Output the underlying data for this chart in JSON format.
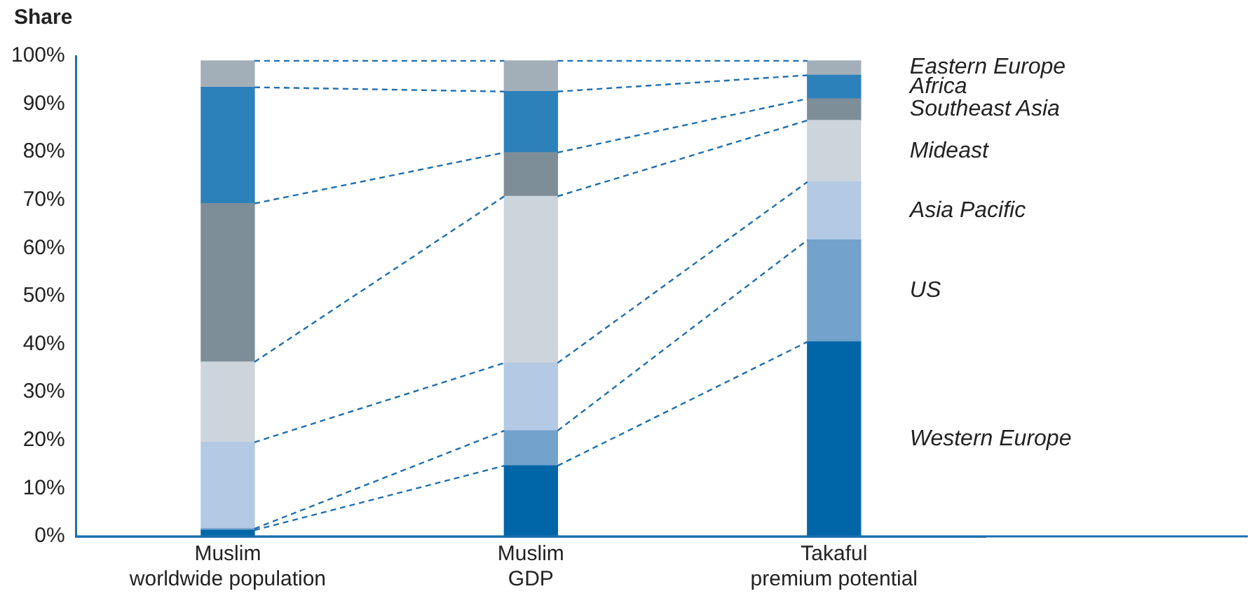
{
  "chart_data": {
    "type": "bar",
    "stacked": true,
    "ylabel": "Share",
    "categories": [
      "Muslim worldwide population",
      "Muslim GDP",
      "Takaful premium potential"
    ],
    "series": [
      {
        "name": "Western Europe",
        "color": "#0066a8",
        "values": [
          1.3,
          14.7,
          40.5
        ]
      },
      {
        "name": "US",
        "color": "#73a2cc",
        "values": [
          0.3,
          7.3,
          21.2
        ]
      },
      {
        "name": "Asia Pacific",
        "color": "#b3c9e4",
        "values": [
          18,
          14.1,
          12.1
        ]
      },
      {
        "name": "Mideast",
        "color": "#cdd5dc",
        "values": [
          16.7,
          34.7,
          12.8
        ]
      },
      {
        "name": "Southeast Asia",
        "color": "#7e8e98",
        "values": [
          33,
          9.1,
          4.5
        ]
      },
      {
        "name": "Africa",
        "color": "#2d81bb",
        "values": [
          24.2,
          12.7,
          4.9
        ]
      },
      {
        "name": "Eastern Europe",
        "color": "#a3afb8",
        "values": [
          5.5,
          6.4,
          3
        ]
      }
    ],
    "ylim": [
      0,
      100
    ],
    "yticks": [
      {
        "value": 0,
        "label": "0%"
      },
      {
        "value": 10,
        "label": "10%"
      },
      {
        "value": 20,
        "label": "20%"
      },
      {
        "value": 30,
        "label": "30%"
      },
      {
        "value": 40,
        "label": "40%"
      },
      {
        "value": 50,
        "label": "50%"
      },
      {
        "value": 60,
        "label": "60%"
      },
      {
        "value": 70,
        "label": "70%"
      },
      {
        "value": 80,
        "label": "80%"
      },
      {
        "value": 90,
        "label": "90%"
      },
      {
        "value": 100,
        "label": "100%"
      }
    ],
    "grid": false,
    "legend": false
  }
}
